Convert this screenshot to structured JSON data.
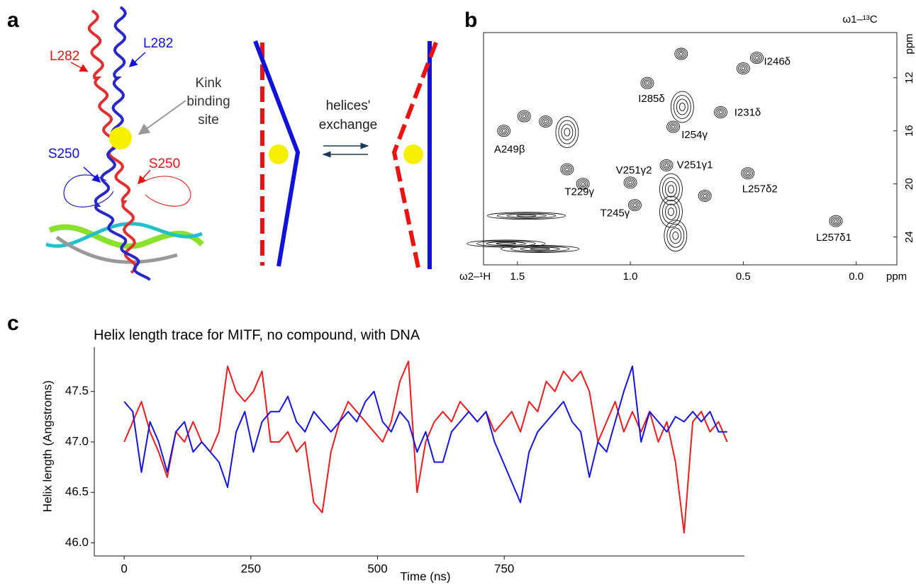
{
  "panels": [
    "a",
    "b",
    "c"
  ],
  "panel_a": {
    "structure_labels": [
      "L282",
      "L282",
      "S250",
      "S250"
    ],
    "kink_label": [
      "Kink",
      "binding",
      "site"
    ],
    "exchange_label": [
      "helices'",
      "exchange"
    ]
  },
  "chart_data": [
    {
      "type": "contour",
      "x_label": "ω2–¹H",
      "y_label": "ω1–¹³C",
      "x_unit": "ppm",
      "y_unit": "ppm",
      "x": [
        0.775,
        0.5,
        0.44,
        0.925,
        0.77,
        0.81,
        0.6,
        1.47,
        1.375,
        1.56,
        1.28,
        1.28,
        1.21,
        1.0,
        0.84,
        0.48,
        0.67,
        0.98,
        0.82,
        0.09,
        1.46,
        1.55,
        1.4,
        0.82,
        0.8
      ],
      "values": [
        10.2,
        11.3,
        10.5,
        12.4,
        14.2,
        15.7,
        14.6,
        14.9,
        15.3,
        16.0,
        16.1,
        18.9,
        20.0,
        19.9,
        18.6,
        19.2,
        20.9,
        21.6,
        22.1,
        22.8,
        22.4,
        24.5,
        24.9,
        20.4,
        23.9
      ],
      "labels": [
        null,
        null,
        "I246δ",
        "I285δ",
        null,
        "I254γ",
        "I231δ",
        null,
        null,
        "A249β",
        null,
        null,
        "T229γ",
        "V251γ2",
        "V251γ1",
        "L257δ2",
        null,
        "T245γ",
        null,
        "L257δ1",
        null,
        null,
        null,
        null,
        null
      ],
      "xlim": [
        1.65,
        -0.18
      ],
      "ylim": [
        26.1,
        8.6
      ],
      "xticks": [
        1.5,
        {
          "value": 1,
          "label": "1.0"
        },
        0.5,
        {
          "value": 0,
          "label": "0.0"
        }
      ],
      "yticks": [
        12,
        16,
        20,
        24
      ]
    },
    {
      "type": "line",
      "title": "Helix length trace for MITF, no compound, with DNA",
      "x_label": "Time (ns)",
      "y_label": "Helix length (Angstroms)",
      "x": [
        0,
        17,
        34,
        51,
        68,
        85,
        102,
        119,
        136,
        153,
        170,
        187,
        204,
        221,
        238,
        255,
        272,
        289,
        306,
        323,
        340,
        357,
        374,
        391,
        408,
        425,
        442,
        459,
        476,
        493,
        510,
        527,
        544,
        561,
        578,
        595,
        612,
        629,
        646,
        663,
        680,
        697,
        714,
        731,
        748,
        765,
        782,
        799,
        816,
        833,
        850,
        867,
        884,
        901,
        918,
        935,
        952,
        969,
        986,
        1003,
        1020,
        1037,
        1054,
        1071,
        1088,
        1105,
        1122,
        1139,
        1156,
        1173,
        1190
      ],
      "series": [
        {
          "color": "#ee1c1c",
          "values": [
            47.0,
            47.2,
            47.4,
            47.1,
            46.9,
            46.65,
            47.1,
            47.0,
            47.2,
            47.0,
            46.9,
            47.1,
            47.75,
            47.5,
            47.4,
            47.5,
            47.7,
            47.0,
            47.0,
            47.1,
            46.9,
            47.0,
            46.4,
            46.3,
            46.9,
            47.2,
            47.4,
            47.3,
            47.2,
            47.1,
            47.0,
            47.2,
            47.6,
            47.8,
            46.5,
            47.0,
            47.2,
            47.3,
            47.2,
            47.4,
            47.3,
            47.2,
            47.3,
            47.1,
            47.2,
            47.3,
            47.1,
            47.4,
            47.3,
            47.6,
            47.5,
            47.7,
            47.6,
            47.7,
            47.5,
            47.0,
            47.2,
            47.4,
            47.1,
            47.3,
            47.1,
            47.3,
            47.0,
            47.2,
            46.8,
            46.1,
            47.2,
            47.3,
            47.1,
            47.2,
            47.0
          ]
        },
        {
          "color": "#1515e0",
          "values": [
            47.4,
            47.3,
            46.7,
            47.2,
            47.0,
            46.7,
            47.1,
            47.2,
            46.9,
            47.0,
            46.9,
            46.8,
            46.55,
            47.1,
            47.3,
            46.9,
            47.2,
            47.3,
            47.3,
            47.45,
            47.2,
            47.1,
            47.3,
            47.2,
            47.1,
            47.2,
            47.3,
            47.2,
            47.4,
            47.5,
            47.2,
            47.1,
            47.3,
            47.2,
            46.9,
            47.1,
            46.8,
            46.8,
            47.1,
            47.2,
            47.3,
            47.2,
            47.3,
            47.0,
            46.8,
            46.6,
            46.4,
            46.9,
            47.1,
            47.2,
            47.3,
            47.4,
            47.2,
            47.1,
            46.65,
            47.0,
            46.9,
            47.2,
            47.5,
            47.75,
            47.0,
            47.3,
            47.2,
            47.1,
            47.25,
            47.2,
            47.3,
            47.2,
            47.3,
            47.1,
            47.1
          ]
        }
      ],
      "xlim": [
        -59,
        1224
      ],
      "ylim": [
        45.87,
        47.94
      ],
      "xticks": [
        0,
        250,
        500,
        750
      ],
      "yticks": [
        {
          "value": 46,
          "label": "46.0"
        },
        46.5,
        {
          "value": 47,
          "label": "47.0"
        },
        47.5
      ]
    }
  ]
}
